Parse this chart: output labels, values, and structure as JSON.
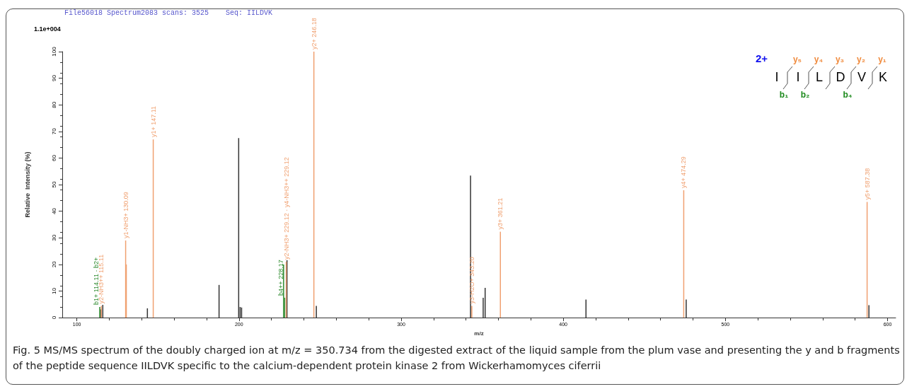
{
  "chart_data": {
    "type": "bar",
    "title": "File56018 Spectrum2083 scans: 3525    Seq: IILDVK",
    "xlabel": "m/z",
    "ylabel": "Relative  Intensity (%)",
    "xlim": [
      91,
      605
    ],
    "xticks": [
      100,
      200,
      300,
      400,
      500,
      600
    ],
    "ylim": [
      0,
      100
    ],
    "yticks": [
      0,
      10,
      20,
      30,
      40,
      50,
      60,
      70,
      80,
      90,
      100
    ],
    "grid": false,
    "series": [
      {
        "color": "#333333",
        "x": [
          114.7,
          116,
          143.5,
          187.7,
          199.8,
          200.7,
          201.6,
          229.6,
          247.7,
          342.8,
          350.6,
          351.8,
          414,
          475.8,
          588.5
        ],
        "values": [
          3.1,
          4.8,
          3.5,
          12.3,
          67.5,
          4,
          3.8,
          21.6,
          4.4,
          53.4,
          7.5,
          11.2,
          6.8,
          6.8,
          4.7
        ]
      },
      {
        "color": "#2e8b2e",
        "x": [
          114.11,
          227.5,
          228.17
        ],
        "values": [
          4,
          20,
          7.5
        ],
        "value_labels": [
          "b1+ 114.11 · b2+",
          null,
          "b4++ 228.17"
        ]
      },
      {
        "color": "#f0a070",
        "x": [
          115.11,
          130.09,
          130.5,
          147.11,
          229.12,
          246.18,
          343.6,
          361.21,
          474.29,
          587.38
        ],
        "values": [
          4.4,
          29,
          20,
          67,
          21,
          100,
          4.4,
          32.3,
          47.9,
          43.5
        ],
        "value_labels": [
          "y2-NH3++ 115.11",
          "y1-NH3+ 130.09",
          null,
          "y1+ 147.11",
          "y2-NH3+ 229.12 · y4-NH3++ 229.12",
          "y2+ 246.18",
          "y3-H2O+ 343.20",
          "y3+ 361.21",
          "y4+ 474.29",
          "y5+ 587.38"
        ]
      }
    ],
    "annotations": [
      "1.1e+004",
      "2+",
      "I I L D V K",
      "y₅ y₄ y₃ y₂ y₁",
      "b₁ b₂ b₄",
      "Fig. 5  MS/MS spectrum of the doubly charged ion at m/z = 350.734 from the digested extract of the liquid sample from the plum vase and presenting the y and b fragments of the peptide sequence IILDVK specific to the calcium-dependent protein kinase 2 from Wickerhamomyces ciferrii"
    ]
  }
}
